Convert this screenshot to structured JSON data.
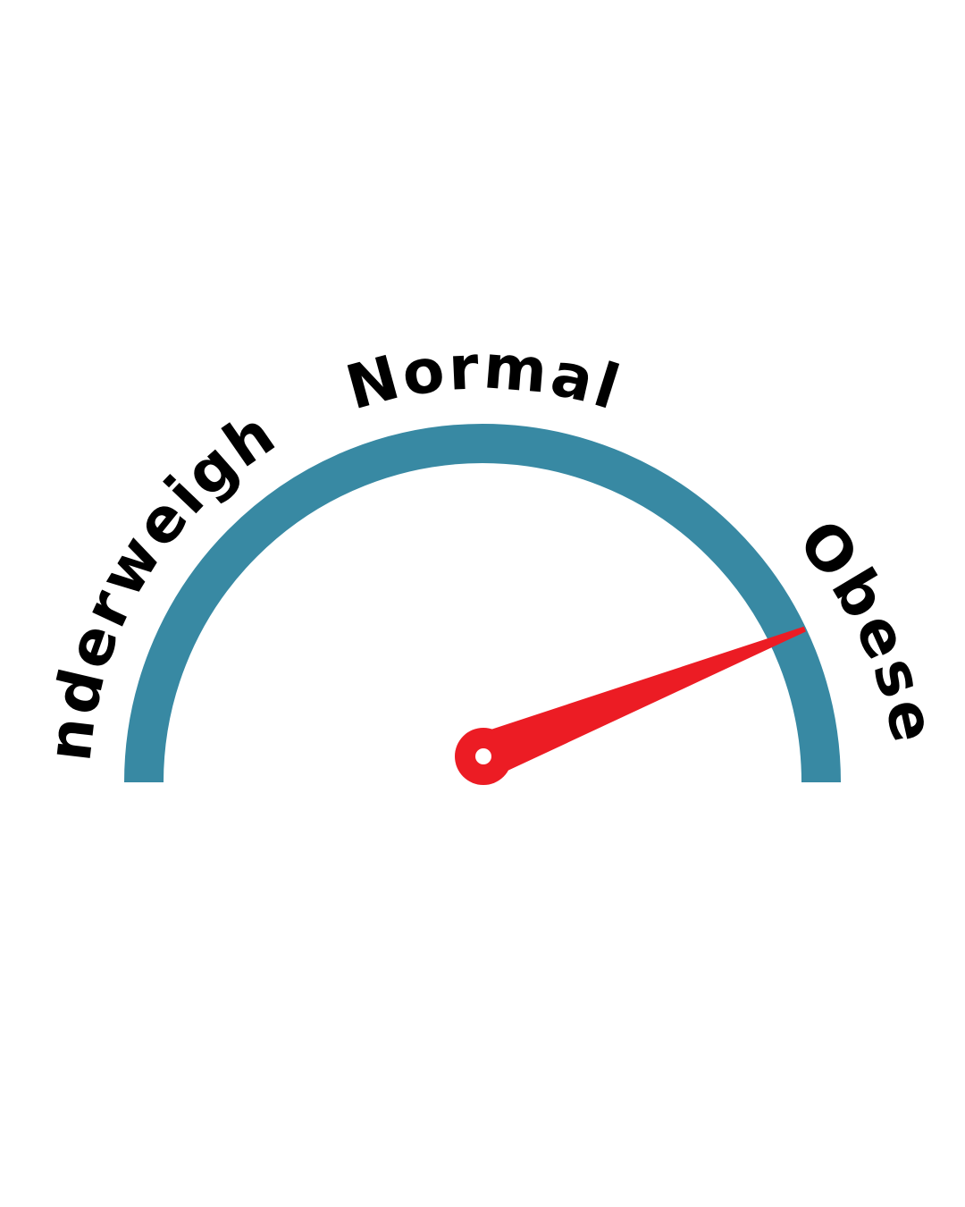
{
  "gauge": {
    "labels": {
      "underweight": "Underweight",
      "normal": "Normal",
      "obese": "Obese"
    },
    "needle_value_fraction": 0.88,
    "colors": {
      "arc": "#3889a3",
      "needle": "#ec1c24",
      "hub_center": "#ffffff",
      "text": "#000000",
      "background": "#ffffff"
    }
  }
}
